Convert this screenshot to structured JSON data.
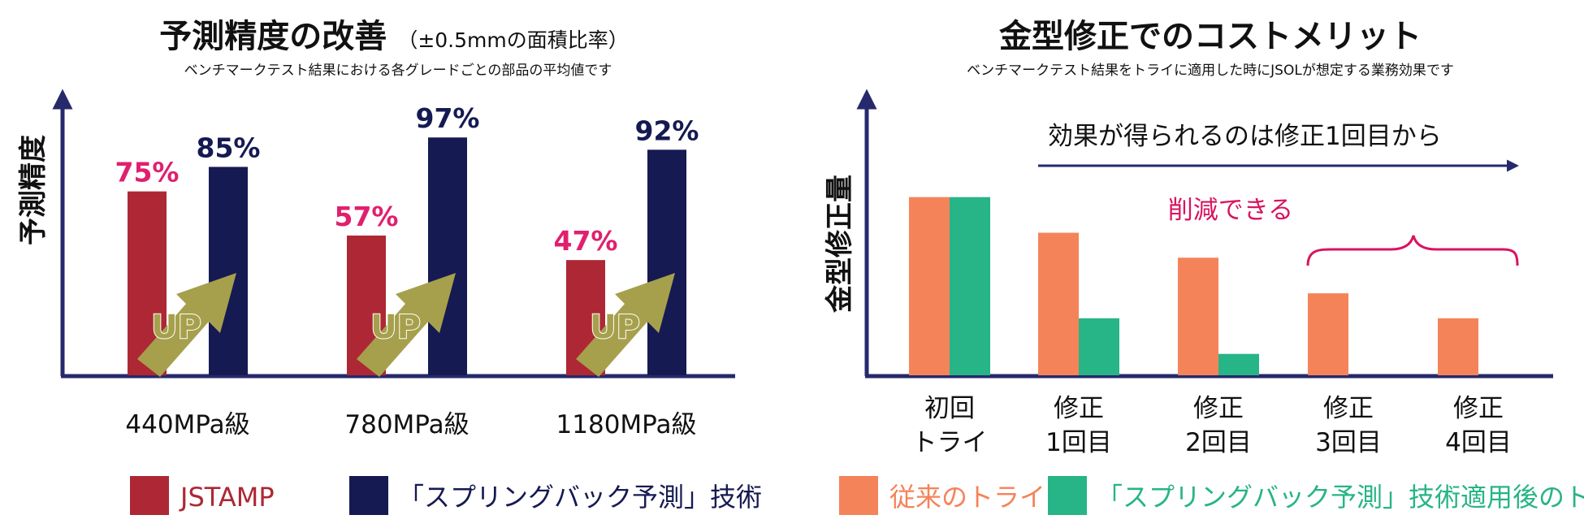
{
  "colors": {
    "jstamp": "#ad2834",
    "springback": "#161a52",
    "accent_pink": "#e0206e",
    "axis": "#26296b",
    "conventional": "#f5835a",
    "applied": "#27b487",
    "up_arrow": "#a6a04c",
    "cut": "#d9145f"
  },
  "left": {
    "title": "予測精度の改善",
    "title_note": "（±0.5mmの面積比率）",
    "subtitle": "ベンチマークテスト結果における各グレードごとの部品の平均値です",
    "ylabel": "予測精度",
    "up_label": "UP",
    "legend": [
      "JSTAMP",
      "「スプリングバック予測」技術"
    ]
  },
  "right": {
    "title": "金型修正でのコストメリット",
    "subtitle": "ベンチマークテスト結果をトライに適用した時にJSOLが想定する業務効果です",
    "ylabel": "金型修正量",
    "note": "効果が得られるのは修正1回目から",
    "cut_label": "削減できる",
    "legend": [
      "従来のトライ",
      "「スプリングバック予測」技術適用後のトライ"
    ]
  },
  "chart_data": [
    {
      "type": "bar",
      "title": "予測精度の改善（±0.5mmの面積比率）",
      "ylabel": "予測精度",
      "categories": [
        "440MPa級",
        "780MPa級",
        "1180MPa級"
      ],
      "series": [
        {
          "name": "JSTAMP",
          "values": [
            75,
            57,
            47
          ],
          "labels": [
            "75%",
            "57%",
            "47%"
          ]
        },
        {
          "name": "「スプリングバック予測」技術",
          "values": [
            85,
            97,
            92
          ],
          "labels": [
            "85%",
            "97%",
            "92%"
          ]
        }
      ],
      "ylim": [
        0,
        110
      ],
      "grid": false,
      "legend": "bottom"
    },
    {
      "type": "bar",
      "title": "金型修正でのコストメリット",
      "ylabel": "金型修正量",
      "categories": [
        [
          "初回",
          "トライ"
        ],
        [
          "修正",
          "1回目"
        ],
        [
          "修正",
          "2回目"
        ],
        [
          "修正",
          "3回目"
        ],
        [
          "修正",
          "4回目"
        ]
      ],
      "series": [
        {
          "name": "従来のトライ",
          "values": [
            100,
            80,
            66,
            46,
            32
          ]
        },
        {
          "name": "「スプリングバック予測」技術適用後のトライ",
          "values": [
            100,
            32,
            12,
            null,
            null
          ]
        }
      ],
      "ylim": [
        0,
        155
      ],
      "grid": false,
      "legend": "bottom"
    }
  ]
}
